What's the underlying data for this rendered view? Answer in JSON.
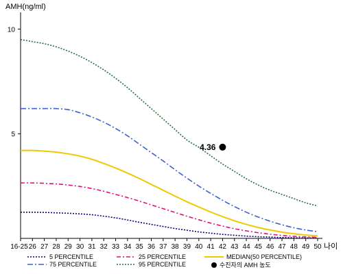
{
  "chart_data": {
    "type": "line",
    "ylabel": "AMH(ng/ml)",
    "xlabel": "나이",
    "ylim": [
      0,
      10.8
    ],
    "y_ticks": [
      10,
      5
    ],
    "categories": [
      "16-25",
      "26",
      "27",
      "28",
      "29",
      "30",
      "31",
      "32",
      "33",
      "34",
      "35",
      "36",
      "37",
      "38",
      "39",
      "40",
      "41",
      "42",
      "43",
      "44",
      "45",
      "46",
      "47",
      "48",
      "49",
      "50"
    ],
    "series": [
      {
        "name": "5 PERCENTILE",
        "color": "#000080",
        "dash": "2,2",
        "values": [
          1.25,
          1.25,
          1.24,
          1.22,
          1.2,
          1.17,
          1.13,
          1.06,
          0.98,
          0.88,
          0.77,
          0.67,
          0.57,
          0.47,
          0.39,
          0.31,
          0.25,
          0.19,
          0.15,
          0.11,
          0.08,
          0.06,
          0.04,
          0.03,
          0.02,
          0.02
        ]
      },
      {
        "name": "25 PERCENTILE",
        "color": "#e0107a",
        "dash": "6,3,2,3",
        "values": [
          2.65,
          2.65,
          2.63,
          2.6,
          2.55,
          2.48,
          2.38,
          2.25,
          2.1,
          1.95,
          1.78,
          1.6,
          1.42,
          1.24,
          1.06,
          0.89,
          0.73,
          0.59,
          0.46,
          0.36,
          0.27,
          0.2,
          0.14,
          0.1,
          0.07,
          0.05
        ]
      },
      {
        "name": "MEDIAN(50 PERCENTILE)",
        "color": "#f0c800",
        "dash": "",
        "values": [
          4.2,
          4.2,
          4.17,
          4.12,
          4.04,
          3.93,
          3.78,
          3.58,
          3.36,
          3.12,
          2.86,
          2.58,
          2.3,
          2.02,
          1.75,
          1.5,
          1.26,
          1.04,
          0.84,
          0.67,
          0.52,
          0.4,
          0.3,
          0.22,
          0.16,
          0.12
        ]
      },
      {
        "name": "75 PERCENTILE",
        "color": "#3b5fd0",
        "dash": "8,3,2,3",
        "values": [
          6.2,
          6.2,
          6.2,
          6.2,
          6.15,
          6.0,
          5.8,
          5.55,
          5.25,
          4.9,
          4.5,
          4.1,
          3.7,
          3.28,
          2.88,
          2.5,
          2.15,
          1.82,
          1.52,
          1.25,
          1.02,
          0.82,
          0.65,
          0.51,
          0.4,
          0.32
        ]
      },
      {
        "name": "95 PERCENTILE",
        "color": "#1f6e3a",
        "dash": "2,2",
        "values": [
          9.5,
          9.4,
          9.3,
          9.15,
          8.95,
          8.7,
          8.4,
          8.05,
          7.65,
          7.2,
          6.7,
          6.2,
          5.7,
          5.2,
          4.7,
          4.35,
          3.95,
          3.55,
          3.2,
          2.85,
          2.55,
          2.3,
          2.1,
          1.9,
          1.7,
          1.55
        ]
      }
    ],
    "annotation": {
      "x": "42",
      "y": 4.36,
      "text": "4.36",
      "legend_label": "수진자의 AMH 농도"
    },
    "legend_placement": "bottom"
  }
}
